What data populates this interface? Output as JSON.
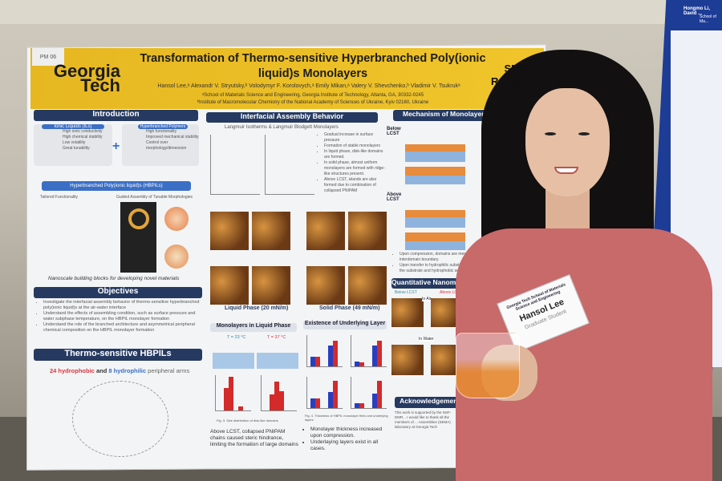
{
  "poster": {
    "tag": "PM 06",
    "logo": "Georgia Tech",
    "title": "Transformation of Thermo-sensitive Hyperbranched Poly(ionic liquid)s Monolayers",
    "authors": "Hansol Lee,ᵃ Alexandr V. Stryutsky,ᵇ Volodymyr F. Korolovych,ᵃ Emily Mikan,ᵃ Valery V. Shevchenko,ᵇ Vladimir V. Tsukrukᵃ",
    "affiliation_a": "ᵃSchool of Materials Science and Engineering, Georgia Institute of Technology, Atlanta, GA, 30332-0245",
    "affiliation_b": "ᵇInstitute of Macromolecular Chemistry of the National Academy of Sciences of Ukraine, Kyiv 02160, Ukraine",
    "lab": "SEMA Research Lab",
    "intro": {
      "header": "Introduction",
      "il_label": "Ionic Liquids (ILs)",
      "il_points": [
        "High ionic conductivity",
        "High chemical stability",
        "Low volatility",
        "Great tunability"
      ],
      "hbp_label": "Hyperbranched Polymers",
      "hbp_points": [
        "High functionality",
        "Improved mechanical stability",
        "Control over morphology/dimension"
      ],
      "hbpil_label": "Hyperbranched Poly(ionic liquid)s (HBPILs)",
      "sub1": "Tailored Functionality",
      "sub2": "Guided Assembly of Tunable Morphologies",
      "caption": "Nanoscale building blocks for developing novel materials"
    },
    "objectives": {
      "header": "Objectives",
      "items": [
        "Investigate the interfacial assembly behavior of thermo-sensitive hyperbranched poly(ionic liquid)s at the air-water interface",
        "Understand the effects of assembling condition, such as surface pressure and water subphase temperature, on the HBPIL monolayer formation",
        "Understand the role of the branched architecture and asymmetrical peripheral chemical composition on the HBPIL monolayer formation"
      ]
    },
    "hbpils": {
      "header": "Thermo-sensitive HBPILs",
      "hydrophobic": "24 hydrophobic",
      "and": "and",
      "hydrophilic": "8 hydrophilic",
      "rest": "peripheral arms"
    },
    "interfacial": {
      "header": "Interfacial Assembly Behavior",
      "subheader": "Langmuir Isotherms & Langmuir Blodgett Monolayers",
      "points": [
        "Gradual increase in surface pressure",
        "Formation of stable monolayers",
        "In liquid phase, disk-like domains are formed.",
        "In solid phase, almost uniform monolayers are formed with ridge-like structures present.",
        "Above LCST, islands are also formed due to combination of collapsed PNIPAM"
      ],
      "liquid": "Liquid Phase (20 mN/m)",
      "solid": "Solid Phase (49 mN/m)"
    },
    "liquid_phase": {
      "header": "Monolayers in Liquid Phase",
      "t1": "T = 23 °C",
      "t2": "T = 37 °C",
      "caption": "Fig. 3. Size distribution of disk-like domains",
      "conclusion": "Above LCST, collapsed PNIPAM chains caused steric hindrance, limiting the formation of large domains"
    },
    "underlying": {
      "header": "Existence of Underlying Layer",
      "caption": "Fig. 4. Thickness of HBPIL monolayer films and underlying layers",
      "points": [
        "Monolayer thickness increased upon compression.",
        "Underlaying layers exist in all cases."
      ]
    },
    "mechanism": {
      "header": "Mechanism of Monolayer Formation",
      "below": "Below LCST",
      "above": "Above LCST",
      "points": [
        "Upon compression, domains are merged with interdomain boundary.",
        "Upon transfer to hydrophilic substrate, hydrophilic... the substrate and hydrophobic segments, form..."
      ]
    },
    "quant": {
      "header": "Quantitative Nanomechanics",
      "below": "Below LCST",
      "above": "Above LCST",
      "air": "In Air",
      "water": "In Water"
    },
    "ack": {
      "header": "Acknowledgements",
      "text": "This work is supported by the NSF-DMR... I would like to thank all the members of ... Assemblies (SEMA) laboratory at Georgia Tech"
    }
  },
  "badge": {
    "school": "Georgia Tech School of Materials Science and Engineering",
    "name": "Hansol Lee",
    "role": "Graduate Student"
  },
  "right_poster": {
    "authors": "Hongmo Li, David ...",
    "school": "School of Ma..."
  },
  "colors": {
    "banner": "#e6b721",
    "header": "#263a61",
    "shirt": "#c8696a",
    "hydrophobic": "#d9363e",
    "hydrophilic": "#3a6fc4"
  }
}
